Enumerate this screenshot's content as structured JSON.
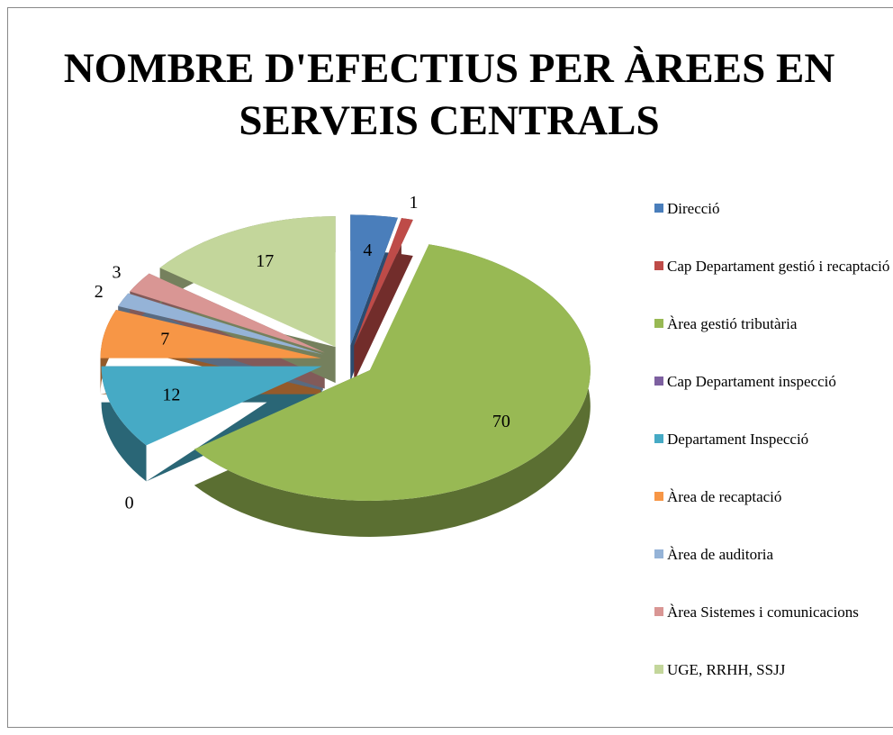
{
  "chart_data": {
    "type": "pie",
    "title": "NOMBRE D'EFECTIUS PER ÀREES EN SERVEIS CENTRALS",
    "categories": [
      "Direcció",
      "Cap Departament  gestió i recaptació",
      "Àrea gestió tributària",
      "Cap Departament  inspecció",
      "Departament Inspecció",
      "Àrea de recaptació",
      "Àrea de auditoria",
      "Àrea Sistemes i comunicacions",
      "UGE, RRHH, SSJJ"
    ],
    "values": [
      4,
      1,
      70,
      0,
      12,
      7,
      2,
      3,
      17
    ],
    "colors": [
      "#4a7ebb",
      "#be4b48",
      "#98b954",
      "#7d60a0",
      "#46aac5",
      "#f79646",
      "#95b3d7",
      "#d99694",
      "#c3d69b"
    ],
    "legend": "right"
  }
}
